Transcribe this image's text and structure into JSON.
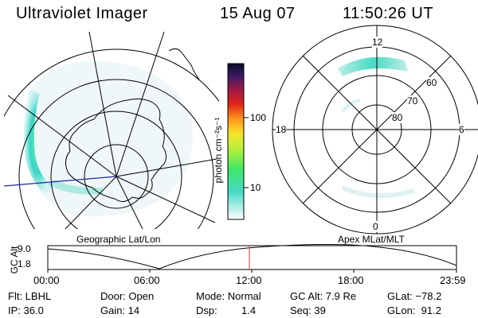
{
  "header": {
    "instrument": "Ultraviolet Imager",
    "date": "15 Aug 07",
    "time": "11:50:26 UT"
  },
  "colorbar": {
    "unit_label": "photon cm⁻²s⁻¹",
    "tick_100": "100",
    "tick_10": "10"
  },
  "polar_plot": {
    "mlt_top": "12",
    "mlt_left": "18",
    "mlt_right": "6",
    "mlt_bottom": "0",
    "lat_60": "60",
    "lat_70": "70",
    "lat_80": "80"
  },
  "orbit": {
    "ylabel": "GC Alt",
    "ytick_top": "9.0",
    "ytick_bottom": "1.8",
    "left_title": "Geographic Lat/Lon",
    "right_title": "Apex MLat/MLT",
    "x_ticks": [
      "00:00",
      "06:00",
      "12:00",
      "18:00",
      "23:59"
    ]
  },
  "info": {
    "filter": "Flt: LBHL",
    "ip": "IP: 36.0",
    "door": "Door: Open",
    "gain": "Gain: 14",
    "mode": "Mode: Normal",
    "dsp_label": "Dsp:",
    "dsp_value": "1.4",
    "gc_alt": "GC Alt: 7.9 Re",
    "seq": "Seq: 39",
    "glat": "GLat: −78.2",
    "glon": "GLon:  91.2"
  },
  "colors": {
    "marker_line": "#e03030",
    "track_line": "#1a2aa0",
    "aurora_cyan": "#3ad8c8",
    "aurora_green": "#50e6a0"
  }
}
